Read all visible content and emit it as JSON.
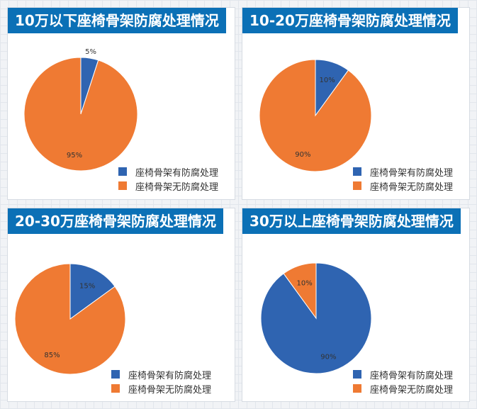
{
  "colors": {
    "with_treatment": "#2f64b1",
    "without_treatment": "#ef7a33",
    "header_bg": "#0b70b6"
  },
  "chart_data": [
    {
      "type": "pie",
      "title": "10万以下座椅骨架防腐处理情况",
      "slices": [
        {
          "name": "座椅骨架有防腐处理",
          "value": 5,
          "label": "5%",
          "color": "#2f64b1"
        },
        {
          "name": "座椅骨架无防腐处理",
          "value": 95,
          "label": "95%",
          "color": "#ef7a33"
        }
      ],
      "legend": [
        "座椅骨架有防腐处理",
        "座椅骨架无防腐处理"
      ],
      "legend_position": "bottom-right"
    },
    {
      "type": "pie",
      "title": "10-20万座椅骨架防腐处理情况",
      "slices": [
        {
          "name": "座椅骨架有防腐处理",
          "value": 10,
          "label": "10%",
          "color": "#2f64b1"
        },
        {
          "name": "座椅骨架无防腐处理",
          "value": 90,
          "label": "90%",
          "color": "#ef7a33"
        }
      ],
      "legend": [
        "座椅骨架有防腐处理",
        "座椅骨架无防腐处理"
      ],
      "legend_position": "bottom-right"
    },
    {
      "type": "pie",
      "title": "20-30万座椅骨架防腐处理情况",
      "slices": [
        {
          "name": "座椅骨架有防腐处理",
          "value": 15,
          "label": "15%",
          "color": "#2f64b1"
        },
        {
          "name": "座椅骨架无防腐处理",
          "value": 85,
          "label": "85%",
          "color": "#ef7a33"
        }
      ],
      "legend": [
        "座椅骨架有防腐处理",
        "座椅骨架无防腐处理"
      ],
      "legend_position": "bottom-right"
    },
    {
      "type": "pie",
      "title": "30万以上座椅骨架防腐处理情况",
      "slices": [
        {
          "name": "座椅骨架有防腐处理",
          "value": 90,
          "label": "90%",
          "color": "#2f64b1"
        },
        {
          "name": "座椅骨架无防腐处理",
          "value": 10,
          "label": "10%",
          "color": "#ef7a33"
        }
      ],
      "legend": [
        "座椅骨架有防腐处理",
        "座椅骨架无防腐处理"
      ],
      "legend_position": "bottom-right"
    }
  ]
}
